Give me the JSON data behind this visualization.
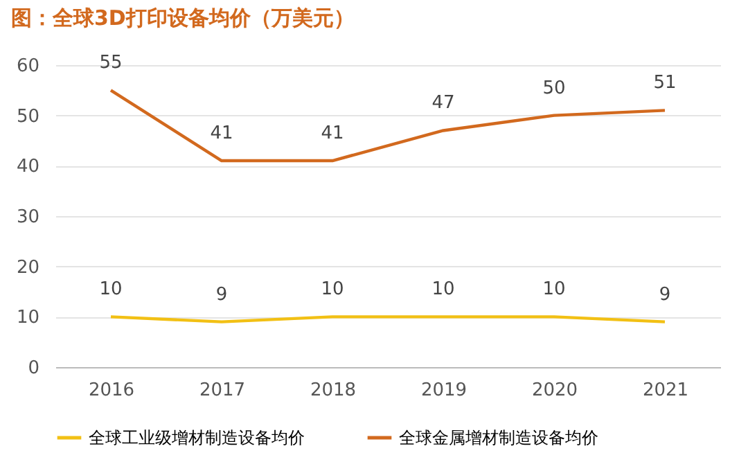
{
  "chart_data": {
    "type": "line",
    "title": "图：全球3D打印设备均价（万美元）",
    "categories": [
      "2016",
      "2017",
      "2018",
      "2019",
      "2020",
      "2021"
    ],
    "series": [
      {
        "name": "全球工业级增材制造设备均价",
        "color": "#f2c014",
        "values": [
          10,
          9,
          10,
          10,
          10,
          9
        ]
      },
      {
        "name": "全球金属增材制造设备均价",
        "color": "#d2691e",
        "values": [
          55,
          41,
          41,
          47,
          50,
          51
        ]
      }
    ],
    "ylim": [
      0,
      60
    ],
    "yticks": [
      0,
      10,
      20,
      30,
      40,
      50,
      60
    ],
    "grid": "y",
    "legend": "bottom",
    "data_labels": true,
    "marker": "none",
    "line_style": "solid"
  }
}
